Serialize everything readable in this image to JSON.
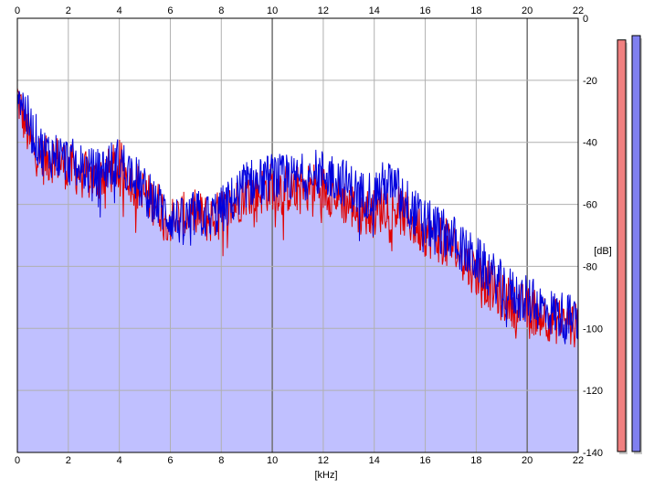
{
  "chart_data": {
    "type": "line",
    "title": "",
    "xlabel": "[kHz]",
    "ylabel": "[dB]",
    "xlim": [
      0,
      22
    ],
    "ylim": [
      0,
      -140
    ],
    "x_ticks": [
      0,
      2,
      4,
      6,
      8,
      10,
      12,
      14,
      16,
      18,
      20,
      22
    ],
    "y_ticks": [
      0,
      -20,
      -40,
      -60,
      -80,
      -100,
      -120,
      -140
    ],
    "x_tick_labels": [
      "0",
      "2",
      "4",
      "6",
      "8",
      "10",
      "12",
      "14",
      "16",
      "18",
      "20",
      "22"
    ],
    "y_tick_labels": [
      "0",
      "-20",
      "-40",
      "-60",
      "-80",
      "-100",
      "-120",
      "-140"
    ],
    "grid": true,
    "fill_under": true,
    "series": [
      {
        "color": "#e00000",
        "x": [
          0,
          0.5,
          1,
          1.5,
          2,
          2.5,
          3,
          3.5,
          4,
          4.5,
          5,
          5.5,
          6,
          6.5,
          7,
          7.5,
          8,
          8.5,
          9,
          9.5,
          10,
          10.5,
          11,
          11.5,
          12,
          12.5,
          13,
          13.5,
          14,
          14.5,
          15,
          15.5,
          16,
          16.5,
          17,
          17.5,
          18,
          18.5,
          19,
          19.5,
          20,
          20.5,
          21,
          21.5,
          22
        ],
        "y": [
          -25,
          -40,
          -46,
          -45,
          -48,
          -50,
          -52,
          -50,
          -47,
          -52,
          -57,
          -60,
          -65,
          -64,
          -63,
          -65,
          -63,
          -60,
          -56,
          -56,
          -54,
          -55,
          -55,
          -54,
          -55,
          -57,
          -60,
          -62,
          -63,
          -60,
          -62,
          -66,
          -69,
          -71,
          -73,
          -78,
          -82,
          -86,
          -90,
          -92,
          -94,
          -95,
          -97,
          -98,
          -100
        ]
      },
      {
        "color": "#0000dd",
        "x": [
          0,
          0.5,
          1,
          1.5,
          2,
          2.5,
          3,
          3.5,
          4,
          4.5,
          5,
          5.5,
          6,
          6.5,
          7,
          7.5,
          8,
          8.5,
          9,
          9.5,
          10,
          10.5,
          11,
          11.5,
          12,
          12.5,
          13,
          13.5,
          14,
          14.5,
          15,
          15.5,
          16,
          16.5,
          17,
          17.5,
          18,
          18.5,
          19,
          19.5,
          20,
          20.5,
          21,
          21.5,
          22
        ],
        "y": [
          -22,
          -35,
          -43,
          -44,
          -46,
          -48,
          -50,
          -48,
          -46,
          -50,
          -56,
          -60,
          -64,
          -66,
          -63,
          -64,
          -62,
          -58,
          -53,
          -53,
          -51,
          -52,
          -52,
          -50,
          -50,
          -51,
          -54,
          -57,
          -56,
          -53,
          -56,
          -62,
          -66,
          -68,
          -70,
          -75,
          -78,
          -82,
          -86,
          -89,
          -91,
          -93,
          -95,
          -96,
          -98
        ]
      }
    ]
  },
  "meters": {
    "left": {
      "color": "#f08080",
      "level": 0.95
    },
    "right": {
      "color": "#8080f0",
      "level": 0.96
    }
  },
  "colors": {
    "fill": "#c0c0ff",
    "grid_light": "#b0b0b0",
    "grid_major": "#707070",
    "axis": "#000000"
  }
}
